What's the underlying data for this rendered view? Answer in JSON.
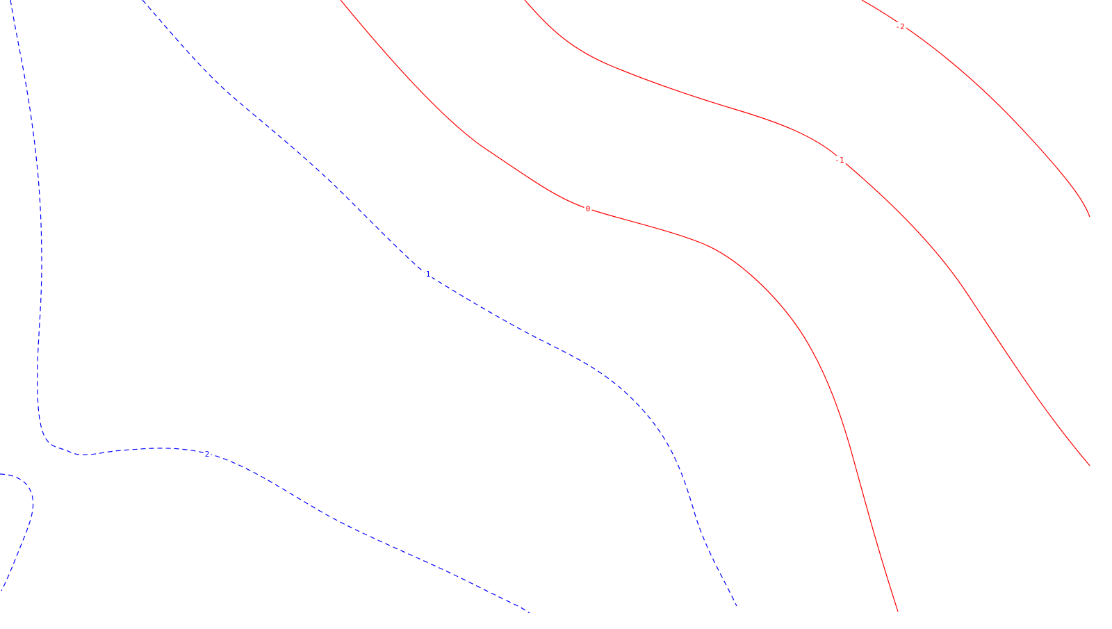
{
  "chart_data": {
    "type": "contour",
    "title": "",
    "xlabel": "",
    "ylabel": "",
    "grid": false,
    "colors": {
      "negative": "#ff0000",
      "positive": "#0000ff"
    },
    "contours": [
      {
        "level": -2,
        "label": "-2",
        "style": "solid",
        "color": "#ff0000"
      },
      {
        "level": -1,
        "label": "-1",
        "style": "solid",
        "color": "#ff0000"
      },
      {
        "level": 0,
        "label": "0",
        "style": "solid",
        "color": "#ff0000"
      },
      {
        "level": 1,
        "label": "1",
        "style": "dashed",
        "color": "#0000ff"
      },
      {
        "level": 2,
        "label": "2",
        "style": "dashed",
        "color": "#0000ff"
      },
      {
        "level": 2,
        "label": "",
        "style": "dashed",
        "color": "#0000ff"
      }
    ]
  }
}
